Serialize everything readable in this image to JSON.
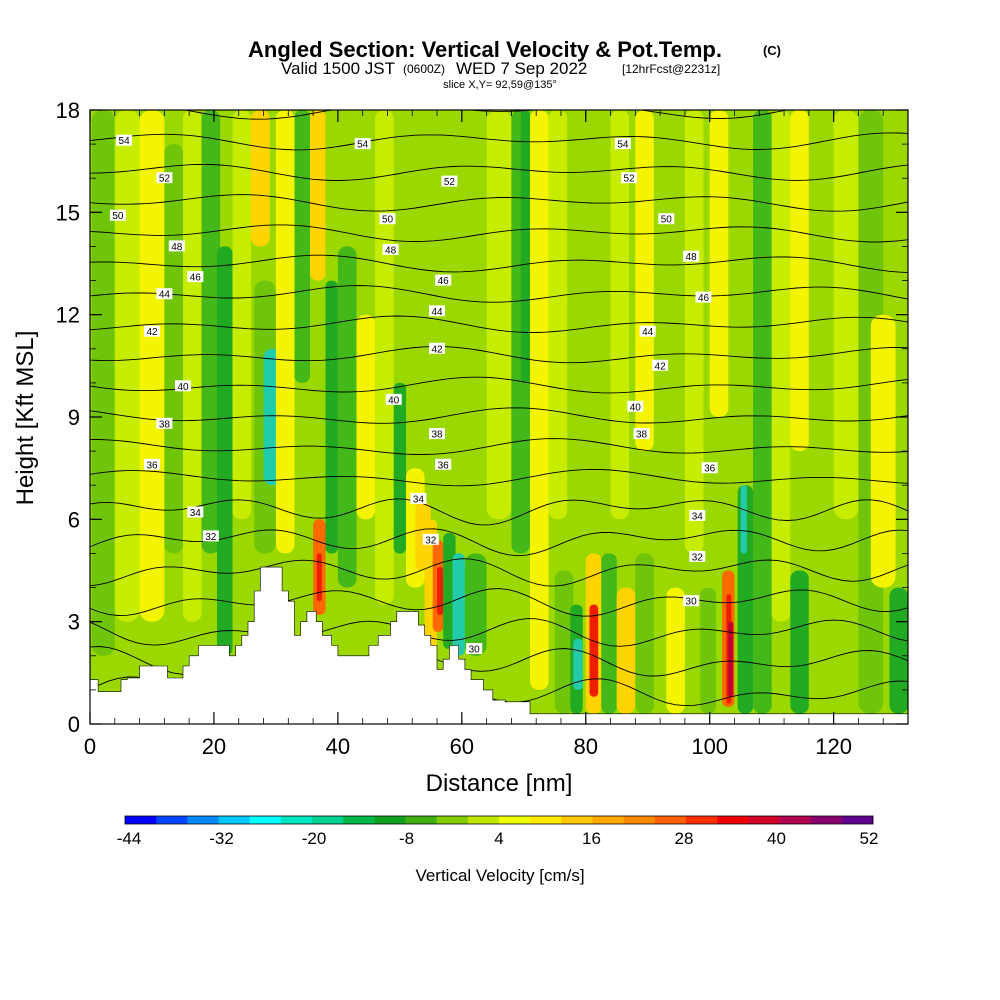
{
  "chart_data": {
    "type": "heatmap",
    "title": "Angled Section: Vertical Velocity & Pot.Temp.",
    "title_mark": "(C)",
    "subtitle_valid": "Valid 1500 JST",
    "subtitle_z": "(0600Z)",
    "subtitle_date": "WED 7 Sep 2022",
    "subtitle_fcst": "[12hrFcst@2231z]",
    "slice": "slice X,Y= 92,59@135°",
    "xlabel": "Distance [nm]",
    "ylabel": "Height [Kft MSL]",
    "xlim": [
      0,
      132
    ],
    "ylim": [
      0,
      18
    ],
    "x_ticks": [
      "0",
      "20",
      "40",
      "60",
      "80",
      "100",
      "120"
    ],
    "y_ticks": [
      "0",
      "3",
      "6",
      "9",
      "12",
      "15",
      "18"
    ],
    "colorbar": {
      "label": "Vertical Velocity [cm/s]",
      "ticks": [
        "-44",
        "-32",
        "-20",
        "-8",
        "4",
        "16",
        "28",
        "40",
        "52"
      ],
      "colors": [
        "#0000ff",
        "#0044ff",
        "#0088ff",
        "#00c8ff",
        "#00ffff",
        "#00e6c0",
        "#00d090",
        "#00b848",
        "#10a020",
        "#40b010",
        "#80cc00",
        "#c0e600",
        "#f0ff00",
        "#ffea00",
        "#ffc800",
        "#ffa800",
        "#ff8800",
        "#ff6000",
        "#ff3000",
        "#f00000",
        "#d00028",
        "#b00050",
        "#880070",
        "#600090"
      ]
    },
    "isentrope_labels": [
      {
        "x": 5.5,
        "y": 17.1,
        "text": "54"
      },
      {
        "x": 44,
        "y": 17.0,
        "text": "54"
      },
      {
        "x": 86,
        "y": 17.0,
        "text": "54"
      },
      {
        "x": 12,
        "y": 16.0,
        "text": "52"
      },
      {
        "x": 58,
        "y": 15.9,
        "text": "52"
      },
      {
        "x": 87,
        "y": 16.0,
        "text": "52"
      },
      {
        "x": 4.5,
        "y": 14.9,
        "text": "50"
      },
      {
        "x": 48,
        "y": 14.8,
        "text": "50"
      },
      {
        "x": 93,
        "y": 14.8,
        "text": "50"
      },
      {
        "x": 14,
        "y": 14.0,
        "text": "48"
      },
      {
        "x": 48.5,
        "y": 13.9,
        "text": "48"
      },
      {
        "x": 97,
        "y": 13.7,
        "text": "48"
      },
      {
        "x": 17,
        "y": 13.1,
        "text": "46"
      },
      {
        "x": 57,
        "y": 13.0,
        "text": "46"
      },
      {
        "x": 99,
        "y": 12.5,
        "text": "46"
      },
      {
        "x": 12,
        "y": 12.6,
        "text": "44"
      },
      {
        "x": 56,
        "y": 12.1,
        "text": "44"
      },
      {
        "x": 90,
        "y": 11.5,
        "text": "44"
      },
      {
        "x": 10,
        "y": 11.5,
        "text": "42"
      },
      {
        "x": 56,
        "y": 11.0,
        "text": "42"
      },
      {
        "x": 92,
        "y": 10.5,
        "text": "42"
      },
      {
        "x": 15,
        "y": 9.9,
        "text": "40"
      },
      {
        "x": 49,
        "y": 9.5,
        "text": "40"
      },
      {
        "x": 88,
        "y": 9.3,
        "text": "40"
      },
      {
        "x": 12,
        "y": 8.8,
        "text": "38"
      },
      {
        "x": 56,
        "y": 8.5,
        "text": "38"
      },
      {
        "x": 89,
        "y": 8.5,
        "text": "38"
      },
      {
        "x": 10,
        "y": 7.6,
        "text": "36"
      },
      {
        "x": 57,
        "y": 7.6,
        "text": "36"
      },
      {
        "x": 100,
        "y": 7.5,
        "text": "36"
      },
      {
        "x": 53,
        "y": 6.6,
        "text": "34"
      },
      {
        "x": 17,
        "y": 6.2,
        "text": "34"
      },
      {
        "x": 98,
        "y": 6.1,
        "text": "34"
      },
      {
        "x": 19.5,
        "y": 5.5,
        "text": "32"
      },
      {
        "x": 55,
        "y": 5.4,
        "text": "32"
      },
      {
        "x": 98,
        "y": 4.9,
        "text": "32"
      },
      {
        "x": 97,
        "y": 3.6,
        "text": "30"
      },
      {
        "x": 62,
        "y": 2.2,
        "text": "30"
      }
    ]
  }
}
